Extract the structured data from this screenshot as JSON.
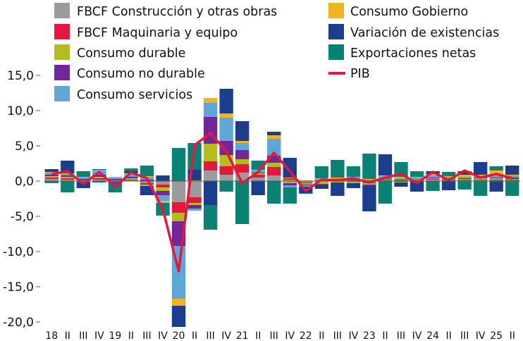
{
  "chart_data": {
    "type": "bar",
    "stacked": true,
    "title": "",
    "xlabel": "",
    "ylabel": "",
    "ylim": [
      -20,
      15
    ],
    "yticks": [
      "15,0",
      "10,0",
      "5,0",
      "0,0",
      "-5,0",
      "-10,0",
      "-15,0",
      "-20,0"
    ],
    "ytick_values": [
      15,
      10,
      5,
      0,
      -5,
      -10,
      -15,
      -20
    ],
    "legend_placement": "top",
    "categories": [
      "18",
      "II",
      "III",
      "IV",
      "19",
      "II",
      "III",
      "IV",
      "20",
      "II",
      "III",
      "IV",
      "21",
      "II",
      "III",
      "IV",
      "22",
      "II",
      "III",
      "IV",
      "23",
      "II",
      "III",
      "IV",
      "24",
      "II",
      "III",
      "IV",
      "25",
      "II"
    ],
    "series": [
      {
        "name": "FBCF  Construcción y otras obras",
        "color": "#9b9b9b",
        "values": [
          0.3,
          0.2,
          0.1,
          0.2,
          0.1,
          0.1,
          -0.3,
          -0.5,
          -3.0,
          -2.3,
          1.5,
          0.9,
          1.2,
          0.5,
          0.8,
          0.2,
          -0.2,
          -0.1,
          0.1,
          0.1,
          -0.2,
          0.1,
          0.1,
          0.1,
          0.2,
          0.1,
          0.1,
          0.1,
          0.1,
          0.1
        ]
      },
      {
        "name": "FBCF Maquinaria y equipo",
        "color": "#e4173e",
        "values": [
          0.2,
          0.2,
          0.1,
          0.2,
          0.1,
          0.1,
          -0.2,
          -0.4,
          -1.5,
          -0.8,
          1.3,
          1.2,
          1.2,
          0.4,
          1.2,
          0.2,
          -0.1,
          0.1,
          0.1,
          -0.1,
          -0.1,
          0.1,
          -0.1,
          0.1,
          0.1,
          0.1,
          0.1,
          0.1,
          0.1,
          0.1
        ]
      },
      {
        "name": "Consumo durable",
        "color": "#b5bd1d",
        "values": [
          0.2,
          0.2,
          -0.1,
          0.2,
          -0.1,
          0.2,
          -0.2,
          -0.5,
          -1.2,
          -0.3,
          2.5,
          1.6,
          0.7,
          0.2,
          0.6,
          -0.3,
          -0.2,
          -0.3,
          -0.2,
          -0.2,
          -0.2,
          0.1,
          -0.1,
          0.1,
          0.1,
          0.1,
          0.1,
          0.2,
          0.2,
          0.1
        ]
      },
      {
        "name": "Consumo no durable",
        "color": "#72269a",
        "values": [
          0.2,
          0.2,
          0.1,
          0.3,
          0.1,
          0.2,
          0.2,
          -0.6,
          -3.5,
          -0.5,
          3.8,
          2.0,
          1.3,
          0.1,
          1.0,
          -0.3,
          -0.1,
          -0.2,
          0.1,
          0.2,
          -0.2,
          0.1,
          0.1,
          -0.2,
          0.1,
          0.1,
          0.1,
          0.1,
          0.1,
          0.2
        ]
      },
      {
        "name": "Consumo servicios",
        "color": "#5ea6d5",
        "values": [
          0.3,
          0.2,
          0.2,
          0.6,
          0.2,
          0.3,
          0.3,
          -0.8,
          -7.5,
          -0.3,
          2.0,
          3.3,
          1.0,
          0.3,
          2.4,
          -0.3,
          -0.2,
          0.2,
          0.1,
          0.2,
          0.2,
          0.3,
          0.2,
          0.2,
          0.3,
          0.2,
          0.2,
          0.2,
          0.2,
          0.3
        ]
      },
      {
        "name": "Consumo Gobierno",
        "color": "#f2b21c",
        "values": [
          0.1,
          0.1,
          0.1,
          0.1,
          0.1,
          0.2,
          0.2,
          -0.3,
          -1.0,
          0.1,
          0.7,
          0.6,
          0.3,
          0.1,
          0.5,
          0.1,
          0.1,
          0.1,
          0.1,
          0.1,
          0.1,
          0.1,
          0.2,
          0.1,
          0.2,
          0.1,
          0.3,
          0.2,
          0.8,
          0.1
        ]
      },
      {
        "name": "Variación de existencias",
        "color": "#1a3d8e",
        "values": [
          0.4,
          1.8,
          -0.9,
          0.1,
          -0.1,
          0.3,
          -1.3,
          0.8,
          -3.0,
          1.5,
          -3.4,
          3.5,
          2.8,
          -2.0,
          0.5,
          2.8,
          -0.9,
          -0.5,
          -1.9,
          -0.7,
          -3.6,
          3.0,
          -0.6,
          -1.3,
          0.4,
          -1.3,
          0.5,
          1.8,
          -1.5,
          1.3
        ]
      },
      {
        "name": "Exportaciones netas",
        "color": "#0b8176",
        "values": [
          -0.3,
          -1.6,
          0.8,
          -0.2,
          -1.4,
          0.4,
          1.5,
          -1.8,
          4.7,
          3.8,
          -3.5,
          -1.5,
          -6.1,
          1.3,
          -3.2,
          -2.3,
          -0.1,
          1.7,
          2.5,
          1.5,
          3.6,
          -3.2,
          2.1,
          0.8,
          -1.4,
          0.6,
          -1.2,
          -2.1,
          0.6,
          -2.1
        ]
      }
    ],
    "line": {
      "name": "PIB",
      "color": "#e4173e",
      "values": [
        1.0,
        1.4,
        -0.4,
        1.3,
        -0.8,
        1.2,
        0.4,
        -4.0,
        -12.8,
        5.1,
        6.8,
        4.2,
        -0.3,
        1.3,
        4.0,
        1.4,
        -1.4,
        0.2,
        0.1,
        0.4,
        -0.2,
        0.5,
        1.0,
        -0.3,
        1.3,
        0.1,
        1.5,
        0.5,
        1.0,
        0.4
      ]
    }
  }
}
